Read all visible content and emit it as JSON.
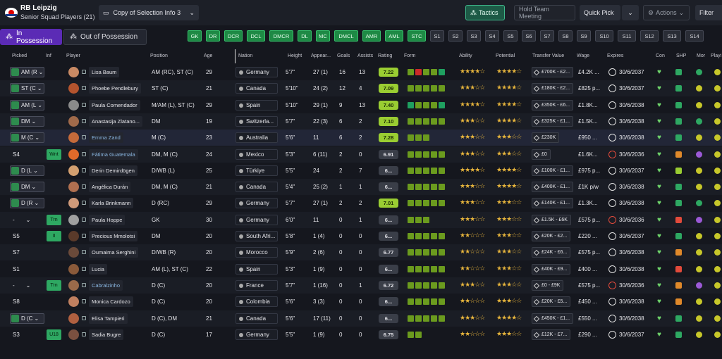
{
  "club": "RB Leipzig",
  "squad": "Senior Squad Players (21)",
  "view": "Copy of Selection Info 3",
  "buttons": {
    "tactics": "Tactics",
    "hold": "Hold Team Meeting",
    "quick": "Quick Pick",
    "actions": "Actions",
    "filter": "Filter"
  },
  "tabs": {
    "in": "In Possession",
    "out": "Out of Possession"
  },
  "positions": [
    {
      "l": "GK",
      "on": true
    },
    {
      "l": "DR",
      "on": true
    },
    {
      "l": "DCR",
      "on": true
    },
    {
      "l": "DCL",
      "on": true
    },
    {
      "l": "DMCR",
      "on": true
    },
    {
      "l": "DL",
      "on": true
    },
    {
      "l": "MC",
      "on": true
    },
    {
      "l": "DMCL",
      "on": true
    },
    {
      "l": "AMR",
      "on": true
    },
    {
      "l": "AML",
      "on": true
    },
    {
      "l": "STC",
      "on": true
    },
    {
      "l": "S1",
      "on": false
    },
    {
      "l": "S2",
      "on": false
    },
    {
      "l": "S3",
      "on": false
    },
    {
      "l": "S4",
      "on": false
    },
    {
      "l": "S5",
      "on": false
    },
    {
      "l": "S6",
      "on": false
    },
    {
      "l": "S7",
      "on": false
    },
    {
      "l": "S8",
      "on": false
    },
    {
      "l": "S9",
      "on": false
    },
    {
      "l": "S10",
      "on": false
    },
    {
      "l": "S11",
      "on": false
    },
    {
      "l": "S12",
      "on": false
    },
    {
      "l": "S13",
      "on": false
    },
    {
      "l": "S14",
      "on": false
    }
  ],
  "headers": {
    "picked": "Picked",
    "inf": "Inf",
    "player": "Player",
    "position": "Position",
    "age": "Age",
    "nation": "Nation",
    "height": "Height",
    "apps": "Appear...",
    "goals": "Goals",
    "assists": "Assists",
    "rating": "Rating",
    "form": "Form",
    "ability": "Ability",
    "potential": "Potential",
    "tv": "Transfer Value",
    "wage": "Wage",
    "expires": "Expires",
    "con": "Con",
    "shp": "SHP",
    "mor": "Mor",
    "playing": "Playi"
  },
  "colors": {
    "accent": "#5b2bb5",
    "green": "#2ea862",
    "rating": "#9acd32"
  },
  "rows": [
    {
      "picked": "AM (R",
      "sel": true,
      "inf": "",
      "name": "Lisa Baum",
      "link": false,
      "pos": "AM (RC), ST (C)",
      "age": "29",
      "nat": "Germany",
      "h": "5'7\"",
      "apps": "27 (1)",
      "g": "16",
      "a": "13",
      "rat": "7.22",
      "rg": true,
      "form": [
        "#6b9b1e",
        "#cc2a2a",
        "#6b9b1e",
        "#6b9b1e",
        "#1fa060"
      ],
      "ab": "★★★★☆",
      "pot": "★★★★☆",
      "tv": "£700K - £2...",
      "wage": "£4.2K ...",
      "exp": "30/6/2037",
      "clk": "w",
      "shp": "#2ea862",
      "mor": "#2ea862"
    },
    {
      "picked": "ST (C",
      "sel": true,
      "inf": "",
      "name": "Phoebe Pendlebury",
      "link": false,
      "pos": "ST (C)",
      "age": "21",
      "nat": "Canada",
      "h": "5'10\"",
      "apps": "24 (2)",
      "g": "12",
      "a": "4",
      "rat": "7.09",
      "rg": true,
      "form": [
        "#6b9b1e",
        "#6b9b1e",
        "#6b9b1e",
        "#6b9b1e",
        "#6b9b1e"
      ],
      "ab": "★★★☆☆",
      "pot": "★★★★☆",
      "tv": "£180K - £2...",
      "wage": "£825 p...",
      "exp": "30/6/2037",
      "clk": "w",
      "shp": "#2ea862",
      "mor": "#c7c72a"
    },
    {
      "picked": "AM (L",
      "sel": true,
      "inf": "",
      "name": "Paula Comendador",
      "link": false,
      "pos": "M/AM (L), ST (C)",
      "age": "29",
      "nat": "Spain",
      "h": "5'10\"",
      "apps": "29 (1)",
      "g": "9",
      "a": "13",
      "rat": "7.40",
      "rg": true,
      "form": [
        "#1fa060",
        "#6b9b1e",
        "#6b9b1e",
        "#6b9b1e",
        "#1fa060"
      ],
      "ab": "★★★★☆",
      "pot": "★★★★☆",
      "tv": "£350K - £6...",
      "wage": "£1.8K...",
      "exp": "30/6/2038",
      "clk": "w",
      "shp": "#2ea862",
      "mor": "#c7c72a"
    },
    {
      "picked": "DM",
      "sel": true,
      "inf": "",
      "name": "Anastasija Zlatano...",
      "link": false,
      "pos": "DM",
      "age": "19",
      "nat": "Switzerla...",
      "h": "5'7\"",
      "apps": "22 (3)",
      "g": "6",
      "a": "2",
      "rat": "7.10",
      "rg": true,
      "form": [
        "#6b9b1e",
        "#6b9b1e",
        "#6b9b1e",
        "#6b9b1e",
        "#6b9b1e"
      ],
      "ab": "★★★☆☆",
      "pot": "★★★★☆",
      "tv": "£325K - £1...",
      "wage": "£1.5K...",
      "exp": "30/6/2038",
      "clk": "w",
      "shp": "#2ea862",
      "mor": "#2ea862"
    },
    {
      "picked": "M (C",
      "sel": true,
      "inf": "",
      "name": "Emma Zand",
      "link": true,
      "pos": "M (C)",
      "age": "23",
      "nat": "Australia",
      "h": "5'6\"",
      "apps": "11",
      "g": "6",
      "a": "2",
      "rat": "7.28",
      "rg": true,
      "form": [
        "#6b9b1e",
        "#6b9b1e",
        "#6b9b1e"
      ],
      "ab": "★★★☆☆",
      "pot": "★★★☆☆",
      "tv": "£230K",
      "wage": "£950 ...",
      "exp": "30/6/2038",
      "clk": "w",
      "shp": "#2ea862",
      "mor": "#c7c72a"
    },
    {
      "picked": "S4",
      "sel": false,
      "inf": "Wnt",
      "name": "Fátima Guatemala",
      "link": true,
      "pos": "DM, M (C)",
      "age": "24",
      "nat": "Mexico",
      "h": "5'3\"",
      "apps": "6 (11)",
      "g": "2",
      "a": "0",
      "rat": "6.91",
      "rg": false,
      "form": [
        "#6b9b1e",
        "#6b9b1e",
        "#6b9b1e",
        "#6b9b1e",
        "#6b9b1e"
      ],
      "ab": "★★★☆☆",
      "pot": "★★★☆☆",
      "tv": "£0",
      "wage": "£1.6K...",
      "exp": "30/6/2036",
      "clk": "r",
      "shp": "#e0892a",
      "mor": "#9b59d6"
    },
    {
      "picked": "D (L",
      "sel": true,
      "inf": "",
      "name": "Derin Demirdögen",
      "link": false,
      "pos": "D/WB (L)",
      "age": "25",
      "nat": "Türkiye",
      "h": "5'5\"",
      "apps": "24",
      "g": "2",
      "a": "7",
      "rat": "6...",
      "rg": false,
      "form": [
        "#6b9b1e",
        "#6b9b1e",
        "#6b9b1e",
        "#6b9b1e",
        "#6b9b1e"
      ],
      "ab": "★★★★☆",
      "pot": "★★★★☆",
      "tv": "£100K - £1...",
      "wage": "£975 p...",
      "exp": "30/6/2037",
      "clk": "w",
      "shp": "#9acd32",
      "mor": "#c7c72a"
    },
    {
      "picked": "DM",
      "sel": true,
      "inf": "",
      "name": "Angélica Durán",
      "link": false,
      "pos": "DM, M (C)",
      "age": "21",
      "nat": "Canada",
      "h": "5'4\"",
      "apps": "25 (2)",
      "g": "1",
      "a": "1",
      "rat": "6...",
      "rg": false,
      "form": [
        "#6b9b1e",
        "#6b9b1e",
        "#6b9b1e",
        "#6b9b1e",
        "#6b9b1e"
      ],
      "ab": "★★★☆☆",
      "pot": "★★★★☆",
      "tv": "£400K - £1...",
      "wage": "£1K p/w",
      "exp": "30/6/2038",
      "clk": "w",
      "shp": "#2ea862",
      "mor": "#c7c72a"
    },
    {
      "picked": "D (R",
      "sel": true,
      "inf": "",
      "name": "Karla Brinkmann",
      "link": false,
      "pos": "D (RC)",
      "age": "29",
      "nat": "Germany",
      "h": "5'7\"",
      "apps": "27 (1)",
      "g": "2",
      "a": "2",
      "rat": "7.01",
      "rg": true,
      "form": [
        "#6b9b1e",
        "#6b9b1e",
        "#6b9b1e",
        "#6b9b1e",
        "#6b9b1e"
      ],
      "ab": "★★★☆☆",
      "pot": "★★★☆☆",
      "tv": "£140K - £1...",
      "wage": "£1.3K...",
      "exp": "30/6/2038",
      "clk": "w",
      "shp": "#2ea862",
      "mor": "#2ea862"
    },
    {
      "picked": "-",
      "sel": false,
      "inf": "Trn",
      "name": "Paula Hoppe",
      "link": false,
      "pos": "GK",
      "age": "30",
      "nat": "Germany",
      "h": "6'0\"",
      "apps": "11",
      "g": "0",
      "a": "1",
      "rat": "6...",
      "rg": false,
      "form": [
        "#6b9b1e",
        "#6b9b1e",
        "#6b9b1e"
      ],
      "ab": "★★★☆☆",
      "pot": "★★★☆☆",
      "tv": "£1.5K - £6K",
      "wage": "£575 p...",
      "exp": "30/6/2036",
      "clk": "r",
      "shp": "#e24a3b",
      "mor": "#9b59d6"
    },
    {
      "picked": "S5",
      "sel": false,
      "inf": "II",
      "name": "Precious Mmolotsi",
      "link": false,
      "pos": "DM",
      "age": "20",
      "nat": "South Afri...",
      "h": "5'8\"",
      "apps": "1 (4)",
      "g": "0",
      "a": "0",
      "rat": "6...",
      "rg": false,
      "form": [
        "#6b9b1e",
        "#6b9b1e",
        "#6b9b1e",
        "#6b9b1e",
        "#6b9b1e"
      ],
      "ab": "★★☆☆☆",
      "pot": "★★★☆☆",
      "tv": "£20K - £2...",
      "wage": "£220 ...",
      "exp": "30/6/2037",
      "clk": "w",
      "shp": "#2ea862",
      "mor": "#c7c72a"
    },
    {
      "picked": "S7",
      "sel": false,
      "inf": "",
      "name": "Oumaima Serghini",
      "link": false,
      "pos": "D/WB (R)",
      "age": "20",
      "nat": "Morocco",
      "h": "5'9\"",
      "apps": "2 (6)",
      "g": "0",
      "a": "0",
      "rat": "6.77",
      "rg": false,
      "form": [
        "#6b9b1e",
        "#6b9b1e",
        "#6b9b1e",
        "#6b9b1e",
        "#6b9b1e"
      ],
      "ab": "★★☆☆☆",
      "pot": "★★★☆☆",
      "tv": "£24K - £6...",
      "wage": "£575 p...",
      "exp": "30/6/2038",
      "clk": "w",
      "shp": "#e0892a",
      "mor": "#c7c72a"
    },
    {
      "picked": "S1",
      "sel": false,
      "inf": "",
      "name": "Lucia",
      "link": false,
      "pos": "AM (L), ST (C)",
      "age": "22",
      "nat": "Spain",
      "h": "5'3\"",
      "apps": "1 (9)",
      "g": "0",
      "a": "0",
      "rat": "6...",
      "rg": false,
      "form": [
        "#6b9b1e",
        "#6b9b1e",
        "#6b9b1e",
        "#6b9b1e",
        "#6b9b1e"
      ],
      "ab": "★★☆☆☆",
      "pot": "★★★☆☆",
      "tv": "£40K - £9...",
      "wage": "£400 ...",
      "exp": "30/6/2038",
      "clk": "w",
      "shp": "#e24a3b",
      "mor": "#c7c72a"
    },
    {
      "picked": "-",
      "sel": false,
      "inf": "Trn",
      "name": "Cabralzinho",
      "link": true,
      "pos": "D (C)",
      "age": "20",
      "nat": "France",
      "h": "5'7\"",
      "apps": "1 (16)",
      "g": "0",
      "a": "1",
      "rat": "6.72",
      "rg": false,
      "form": [
        "#6b9b1e",
        "#6b9b1e",
        "#6b9b1e",
        "#6b9b1e",
        "#6b9b1e"
      ],
      "ab": "★★★☆☆",
      "pot": "★★★☆☆",
      "tv": "£0 - £9K",
      "wage": "£575 p...",
      "exp": "30/6/2036",
      "clk": "r",
      "shp": "#e0892a",
      "mor": "#9b59d6"
    },
    {
      "picked": "S8",
      "sel": false,
      "inf": "",
      "name": "Monica Cardozo",
      "link": false,
      "pos": "D (C)",
      "age": "20",
      "nat": "Colombia",
      "h": "5'6\"",
      "apps": "3 (3)",
      "g": "0",
      "a": "0",
      "rat": "6...",
      "rg": false,
      "form": [
        "#6b9b1e",
        "#6b9b1e",
        "#6b9b1e",
        "#6b9b1e",
        "#6b9b1e"
      ],
      "ab": "★★☆☆☆",
      "pot": "★★★☆☆",
      "tv": "£20K - £5...",
      "wage": "£450 ...",
      "exp": "30/6/2038",
      "clk": "w",
      "shp": "#e0892a",
      "mor": "#c7c72a"
    },
    {
      "picked": "D (C",
      "sel": true,
      "inf": "",
      "name": "Elisa Tampieri",
      "link": false,
      "pos": "D (C), DM",
      "age": "21",
      "nat": "Canada",
      "h": "5'6\"",
      "apps": "17 (11)",
      "g": "0",
      "a": "0",
      "rat": "6...",
      "rg": false,
      "form": [
        "#6b9b1e",
        "#6b9b1e",
        "#6b9b1e",
        "#6b9b1e",
        "#6b9b1e"
      ],
      "ab": "★★★☆☆",
      "pot": "★★★★☆",
      "tv": "£450K - £1...",
      "wage": "£550 ...",
      "exp": "30/6/2038",
      "clk": "w",
      "shp": "#2ea862",
      "mor": "#c7c72a"
    },
    {
      "picked": "S3",
      "sel": false,
      "inf": "U18",
      "name": "Sadia Bugre",
      "link": false,
      "pos": "D (C)",
      "age": "17",
      "nat": "Germany",
      "h": "5'5\"",
      "apps": "1 (9)",
      "g": "0",
      "a": "0",
      "rat": "6.75",
      "rg": false,
      "form": [
        "#6b9b1e",
        "#6b9b1e"
      ],
      "ab": "★★☆☆☆",
      "pot": "★★★☆☆",
      "tv": "£12K - £7...",
      "wage": "£290 ...",
      "exp": "30/6/2037",
      "clk": "w",
      "shp": "#2ea862",
      "mor": "#c7c72a"
    }
  ]
}
